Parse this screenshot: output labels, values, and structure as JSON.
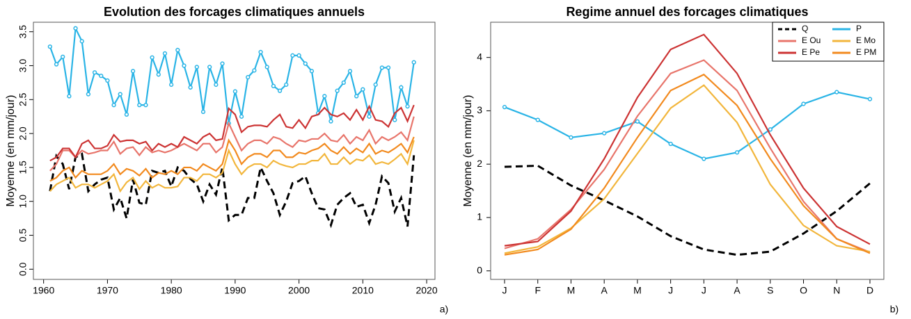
{
  "chart_data": [
    {
      "type": "line",
      "title": "Evolution des forcages climatiques annuels",
      "y_label": "Moyenne (en mm/jour)",
      "panel_label": "a)",
      "x": [
        1961,
        1962,
        1963,
        1964,
        1965,
        1966,
        1967,
        1968,
        1969,
        1970,
        1971,
        1972,
        1973,
        1974,
        1975,
        1976,
        1977,
        1978,
        1979,
        1980,
        1981,
        1982,
        1983,
        1984,
        1985,
        1986,
        1987,
        1988,
        1989,
        1990,
        1991,
        1992,
        1993,
        1994,
        1995,
        1996,
        1997,
        1998,
        1999,
        2000,
        2001,
        2002,
        2003,
        2004,
        2005,
        2006,
        2007,
        2008,
        2009,
        2010,
        2011,
        2012,
        2013,
        2014,
        2015,
        2016,
        2017,
        2018
      ],
      "xlim": [
        1958.4,
        2021.3
      ],
      "xticks": [
        1960,
        1970,
        1980,
        1990,
        2000,
        2010,
        2020
      ],
      "ylim": [
        -0.15,
        3.64
      ],
      "yticks": [
        {
          "value": 0,
          "label": "0.0"
        },
        0.5,
        {
          "value": 1,
          "label": "1.0"
        },
        1.5,
        {
          "value": 2,
          "label": "2.0"
        },
        2.5,
        {
          "value": 3,
          "label": "3.0"
        },
        3.5
      ],
      "series": [
        {
          "name": "Q",
          "color": "#000000",
          "dash": "dashed",
          "values": [
            1.15,
            1.67,
            1.55,
            1.18,
            1.65,
            1.7,
            1.15,
            1.25,
            1.32,
            1.35,
            0.88,
            1.05,
            0.75,
            1.32,
            0.98,
            0.95,
            1.45,
            1.42,
            1.45,
            1.22,
            1.5,
            1.45,
            1.33,
            1.25,
            1.0,
            1.25,
            1.1,
            1.5,
            0.72,
            0.8,
            0.8,
            1.05,
            1.05,
            1.5,
            1.3,
            1.12,
            0.8,
            1.0,
            1.27,
            1.3,
            1.37,
            1.12,
            0.9,
            0.88,
            0.65,
            0.95,
            1.05,
            1.12,
            0.92,
            0.95,
            0.68,
            0.95,
            1.37,
            1.27,
            0.85,
            1.05,
            0.63,
            1.68
          ]
        },
        {
          "name": "P",
          "color": "#2ab4e6",
          "marker": true,
          "values": [
            3.28,
            3.02,
            3.13,
            2.55,
            3.55,
            3.36,
            2.58,
            2.9,
            2.85,
            2.78,
            2.42,
            2.58,
            2.28,
            2.92,
            2.42,
            2.42,
            3.12,
            2.87,
            3.18,
            2.72,
            3.23,
            3.0,
            2.68,
            2.98,
            2.32,
            2.98,
            2.72,
            3.03,
            2.15,
            2.62,
            2.25,
            2.83,
            2.93,
            3.2,
            2.98,
            2.7,
            2.63,
            2.72,
            3.15,
            3.15,
            3.03,
            2.92,
            2.3,
            2.55,
            2.18,
            2.63,
            2.75,
            2.92,
            2.55,
            2.65,
            2.25,
            2.72,
            2.97,
            2.97,
            2.2,
            2.68,
            2.4,
            3.05
          ]
        },
        {
          "name": "E Ou",
          "color": "#e8756b",
          "values": [
            1.45,
            1.55,
            1.75,
            1.75,
            1.65,
            1.75,
            1.7,
            1.72,
            1.75,
            1.75,
            1.88,
            1.7,
            1.78,
            1.8,
            1.68,
            1.8,
            1.72,
            1.75,
            1.72,
            1.75,
            1.8,
            1.85,
            1.8,
            1.75,
            1.85,
            1.85,
            1.72,
            1.8,
            2.15,
            1.95,
            1.75,
            1.85,
            1.9,
            1.9,
            1.85,
            1.95,
            1.92,
            1.85,
            1.8,
            1.9,
            1.88,
            1.92,
            1.92,
            2.0,
            1.9,
            1.88,
            1.98,
            1.85,
            1.95,
            1.9,
            2.05,
            1.85,
            1.95,
            1.9,
            1.95,
            2.02,
            1.9,
            2.25
          ]
        },
        {
          "name": "E Mo",
          "color": "#f2b63c",
          "values": [
            1.15,
            1.25,
            1.3,
            1.35,
            1.2,
            1.25,
            1.25,
            1.2,
            1.25,
            1.3,
            1.4,
            1.15,
            1.28,
            1.35,
            1.18,
            1.3,
            1.2,
            1.25,
            1.2,
            1.2,
            1.22,
            1.35,
            1.35,
            1.3,
            1.4,
            1.4,
            1.35,
            1.42,
            1.75,
            1.55,
            1.4,
            1.5,
            1.55,
            1.55,
            1.5,
            1.6,
            1.55,
            1.52,
            1.5,
            1.55,
            1.55,
            1.6,
            1.6,
            1.7,
            1.55,
            1.55,
            1.65,
            1.55,
            1.62,
            1.6,
            1.68,
            1.55,
            1.58,
            1.55,
            1.62,
            1.7,
            1.55,
            1.9
          ]
        },
        {
          "name": "E Pe",
          "color": "#cc3333",
          "values": [
            1.6,
            1.65,
            1.78,
            1.78,
            1.65,
            1.85,
            1.9,
            1.78,
            1.78,
            1.82,
            1.98,
            1.88,
            1.9,
            1.9,
            1.85,
            1.88,
            1.75,
            1.85,
            1.8,
            1.85,
            1.8,
            1.95,
            1.9,
            1.85,
            1.95,
            2.0,
            1.9,
            1.92,
            2.37,
            2.28,
            2.02,
            2.1,
            2.12,
            2.12,
            2.1,
            2.2,
            2.28,
            2.1,
            2.08,
            2.2,
            2.08,
            2.25,
            2.28,
            2.38,
            2.28,
            2.25,
            2.3,
            2.2,
            2.35,
            2.2,
            2.4,
            2.2,
            2.18,
            2.1,
            2.3,
            2.38,
            2.18,
            2.42
          ]
        },
        {
          "name": "E PM",
          "color": "#f28a1e",
          "values": [
            1.3,
            1.35,
            1.45,
            1.5,
            1.35,
            1.45,
            1.4,
            1.4,
            1.4,
            1.45,
            1.55,
            1.4,
            1.48,
            1.45,
            1.38,
            1.48,
            1.35,
            1.42,
            1.4,
            1.45,
            1.4,
            1.5,
            1.5,
            1.45,
            1.55,
            1.5,
            1.45,
            1.55,
            1.9,
            1.75,
            1.55,
            1.65,
            1.7,
            1.7,
            1.65,
            1.75,
            1.75,
            1.65,
            1.65,
            1.72,
            1.7,
            1.75,
            1.78,
            1.85,
            1.75,
            1.7,
            1.8,
            1.7,
            1.78,
            1.72,
            1.85,
            1.7,
            1.75,
            1.72,
            1.78,
            1.85,
            1.72,
            1.95
          ]
        }
      ]
    },
    {
      "type": "line",
      "title": "Regime annuel des forcages climatiques",
      "y_label": "Moyenne (en mm/jour)",
      "panel_label": "b)",
      "categories": [
        "J",
        "F",
        "M",
        "A",
        "M",
        "J",
        "J",
        "A",
        "S",
        "O",
        "N",
        "D"
      ],
      "ylim": [
        -0.16,
        4.66
      ],
      "yticks": [
        0,
        1,
        2,
        3,
        4
      ],
      "legend": "top-right",
      "series": [
        {
          "name": "Q",
          "color": "#000000",
          "dash": "dashed",
          "values": [
            1.95,
            1.97,
            1.6,
            1.32,
            1.02,
            0.65,
            0.4,
            0.3,
            0.36,
            0.7,
            1.12,
            1.64
          ]
        },
        {
          "name": "P",
          "color": "#2ab4e6",
          "marker": true,
          "values": [
            3.07,
            2.83,
            2.5,
            2.58,
            2.8,
            2.38,
            2.1,
            2.22,
            2.65,
            3.13,
            3.35,
            3.22
          ]
        },
        {
          "name": "E Ou",
          "color": "#e8756b",
          "values": [
            0.42,
            0.6,
            1.15,
            1.9,
            2.9,
            3.7,
            3.95,
            3.38,
            2.3,
            1.3,
            0.6,
            0.35
          ]
        },
        {
          "name": "E Mo",
          "color": "#f2b63c",
          "values": [
            0.33,
            0.45,
            0.8,
            1.35,
            2.2,
            3.05,
            3.48,
            2.78,
            1.62,
            0.85,
            0.47,
            0.36
          ]
        },
        {
          "name": "E Pe",
          "color": "#cc3333",
          "values": [
            0.47,
            0.55,
            1.12,
            2.1,
            3.25,
            4.15,
            4.43,
            3.7,
            2.55,
            1.55,
            0.83,
            0.5
          ]
        },
        {
          "name": "E PM",
          "color": "#f28a1e",
          "values": [
            0.3,
            0.4,
            0.78,
            1.55,
            2.5,
            3.38,
            3.68,
            3.1,
            2.1,
            1.22,
            0.6,
            0.33
          ]
        }
      ]
    }
  ]
}
